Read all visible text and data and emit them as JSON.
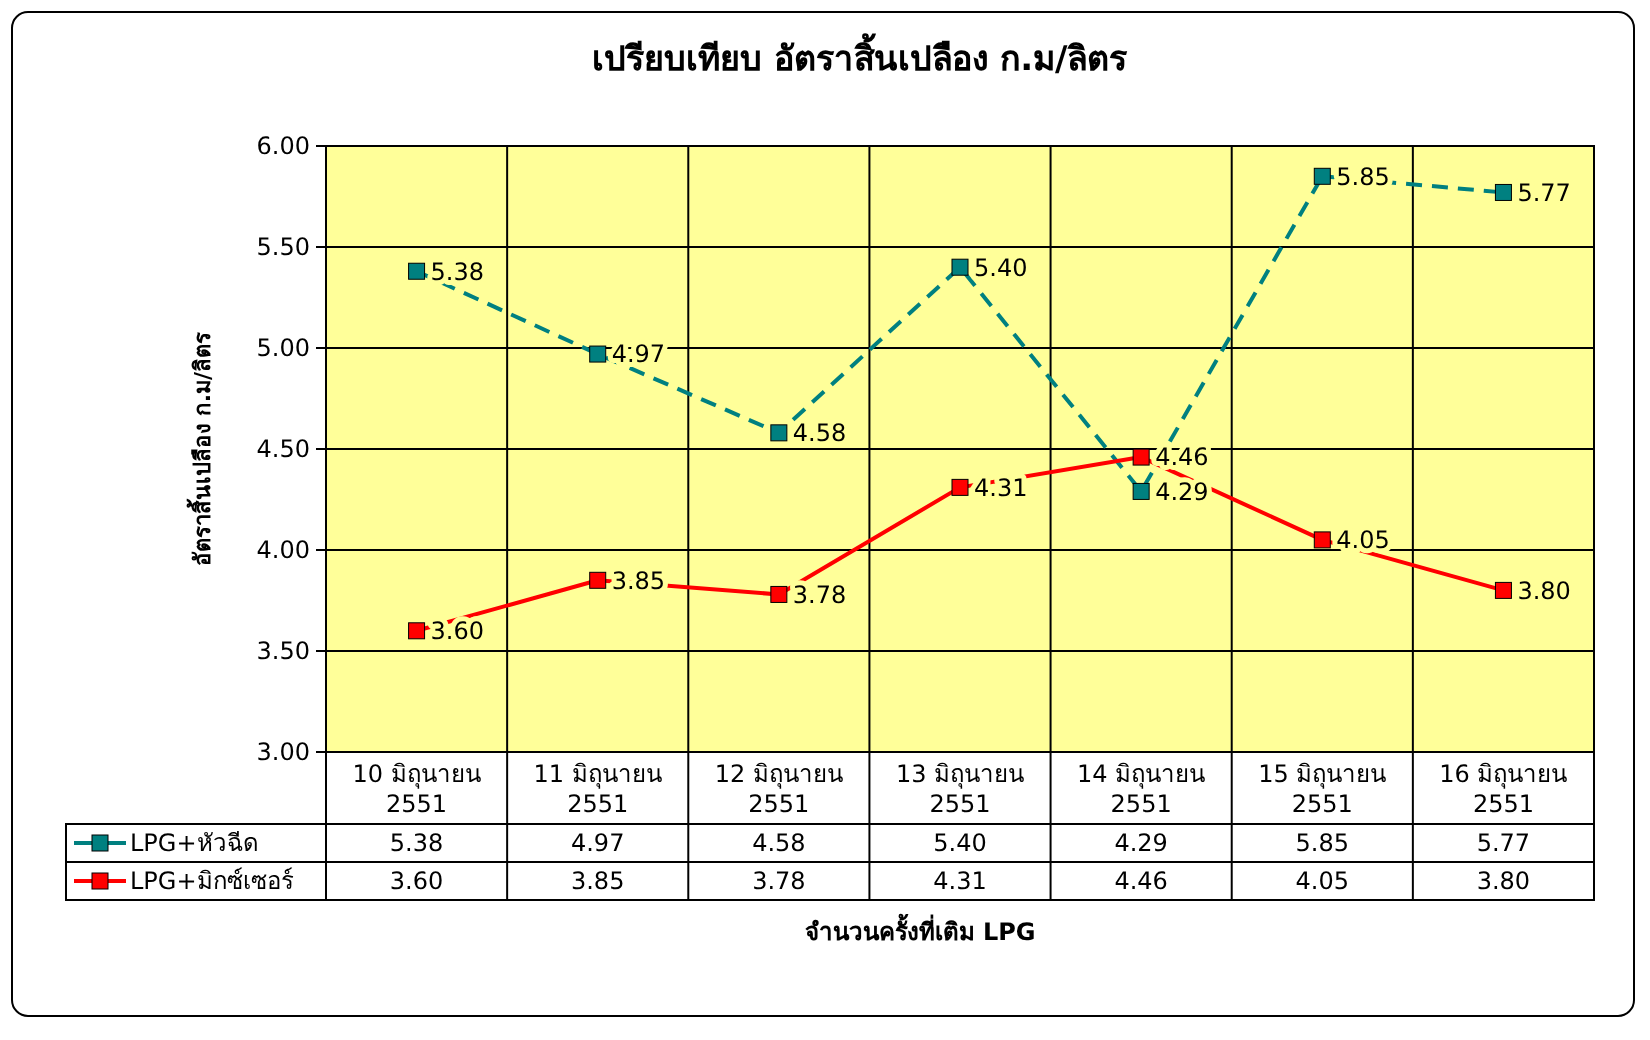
{
  "chart_data": {
    "type": "line",
    "title": "เปรียบเทียบ อัตราสิ้นเปลือง ก.ม/ลิตร",
    "xlabel": "จำนวนครั้งที่เติม LPG",
    "ylabel": "อัตราสิ้นเปลือง ก.ม/ลิตร",
    "categories": [
      "10 มิถุนายน 2551",
      "11 มิถุนายน 2551",
      "12 มิถุนายน 2551",
      "13 มิถุนายน 2551",
      "14 มิถุนายน 2551",
      "15 มิถุนายน 2551",
      "16 มิถุนายน 2551"
    ],
    "series": [
      {
        "name": "LPG+หัวฉีด",
        "color": "#008080",
        "line_style": "dashed",
        "values": [
          5.38,
          4.97,
          4.58,
          5.4,
          4.29,
          5.85,
          5.77
        ],
        "value_labels": [
          "5.38",
          "4.97",
          "4.58",
          "5.40",
          "4.29",
          "5.85",
          "5.77"
        ]
      },
      {
        "name": "LPG+มิกซ์เซอร์",
        "color": "#ff0000",
        "line_style": "solid",
        "values": [
          3.6,
          3.85,
          3.78,
          4.31,
          4.46,
          4.05,
          3.8
        ],
        "value_labels": [
          "3.60",
          "3.85",
          "3.78",
          "4.31",
          "4.46",
          "4.05",
          "3.80"
        ]
      }
    ],
    "ylim": [
      3,
      6
    ],
    "yticks": [
      "3.00",
      "3.50",
      "4.00",
      "4.50",
      "5.00",
      "5.50",
      "6.00"
    ],
    "grid": true,
    "marker": "square",
    "legend": "bottom left"
  }
}
